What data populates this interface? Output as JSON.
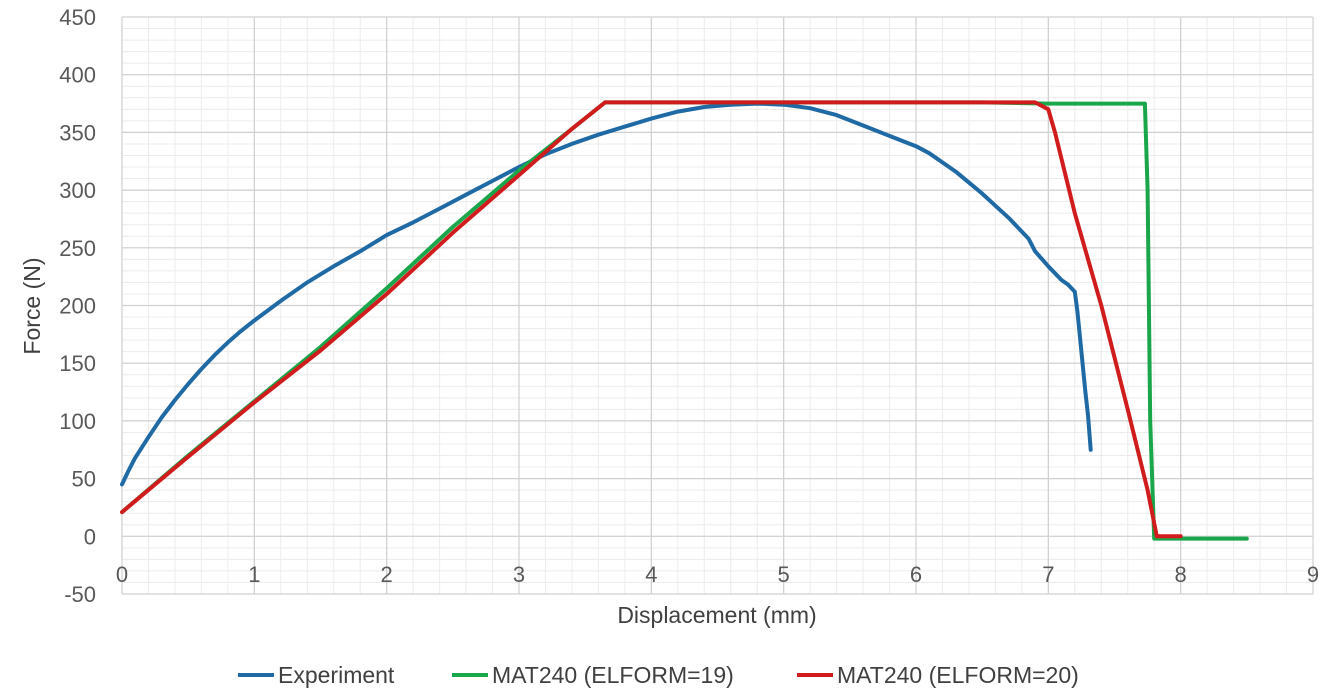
{
  "chart_data": {
    "type": "line",
    "title": "",
    "xlabel": "Displacement  (mm)",
    "ylabel": "Force (N)",
    "xlim": [
      0,
      9
    ],
    "ylim": [
      -50,
      450
    ],
    "x_ticks": [
      "0",
      "1",
      "2",
      "3",
      "4",
      "5",
      "6",
      "7",
      "8",
      "9"
    ],
    "y_ticks": [
      "-50",
      "0",
      "50",
      "100",
      "150",
      "200",
      "250",
      "300",
      "350",
      "400",
      "450"
    ],
    "grid": true,
    "minor_grid": true,
    "legend_position": "bottom",
    "series": [
      {
        "name": "Experiment",
        "color": "#1f6aa5",
        "points": [
          [
            0,
            45
          ],
          [
            0.05,
            57
          ],
          [
            0.1,
            68
          ],
          [
            0.2,
            86
          ],
          [
            0.3,
            103
          ],
          [
            0.4,
            118
          ],
          [
            0.5,
            132
          ],
          [
            0.6,
            145
          ],
          [
            0.7,
            157
          ],
          [
            0.8,
            168
          ],
          [
            0.9,
            178
          ],
          [
            1.0,
            187
          ],
          [
            1.2,
            204
          ],
          [
            1.4,
            220
          ],
          [
            1.5,
            227
          ],
          [
            1.6,
            234
          ],
          [
            1.8,
            247
          ],
          [
            2.0,
            261
          ],
          [
            2.2,
            272
          ],
          [
            2.4,
            284
          ],
          [
            2.6,
            296
          ],
          [
            2.8,
            308
          ],
          [
            3.0,
            320
          ],
          [
            3.2,
            331
          ],
          [
            3.4,
            340
          ],
          [
            3.6,
            348
          ],
          [
            3.8,
            355
          ],
          [
            4.0,
            362
          ],
          [
            4.2,
            368
          ],
          [
            4.4,
            372
          ],
          [
            4.6,
            374
          ],
          [
            4.8,
            375
          ],
          [
            5.0,
            374
          ],
          [
            5.2,
            371
          ],
          [
            5.4,
            365
          ],
          [
            5.6,
            356
          ],
          [
            5.8,
            347
          ],
          [
            6.0,
            338
          ],
          [
            6.1,
            332
          ],
          [
            6.3,
            316
          ],
          [
            6.5,
            297
          ],
          [
            6.7,
            276
          ],
          [
            6.85,
            258
          ],
          [
            6.9,
            247
          ],
          [
            7.0,
            234
          ],
          [
            7.1,
            222
          ],
          [
            7.15,
            218
          ],
          [
            7.2,
            212
          ],
          [
            7.22,
            195
          ],
          [
            7.25,
            160
          ],
          [
            7.28,
            125
          ],
          [
            7.3,
            105
          ],
          [
            7.32,
            75
          ]
        ]
      },
      {
        "name": "MAT240 (ELFORM=19)",
        "color": "#1aa64a",
        "points": [
          [
            0,
            21
          ],
          [
            0.5,
            70
          ],
          [
            1.0,
            117
          ],
          [
            1.5,
            164
          ],
          [
            2.0,
            215
          ],
          [
            2.5,
            268
          ],
          [
            3.0,
            317
          ],
          [
            3.4,
            353
          ],
          [
            3.65,
            376
          ],
          [
            4.5,
            376
          ],
          [
            5.5,
            376
          ],
          [
            6.5,
            376
          ],
          [
            7.0,
            375
          ],
          [
            7.5,
            375
          ],
          [
            7.73,
            375
          ],
          [
            7.75,
            300
          ],
          [
            7.77,
            100
          ],
          [
            7.8,
            -2
          ],
          [
            8.0,
            -2
          ],
          [
            8.5,
            -2
          ]
        ]
      },
      {
        "name": "MAT240 (ELFORM=20)",
        "color": "#d01c1c",
        "points": [
          [
            0,
            21
          ],
          [
            0.5,
            69
          ],
          [
            1.0,
            116
          ],
          [
            1.5,
            161
          ],
          [
            2.0,
            210
          ],
          [
            2.5,
            263
          ],
          [
            3.0,
            313
          ],
          [
            3.4,
            353
          ],
          [
            3.65,
            376
          ],
          [
            4.5,
            376
          ],
          [
            5.5,
            376
          ],
          [
            6.2,
            376
          ],
          [
            6.9,
            376
          ],
          [
            7.0,
            370
          ],
          [
            7.05,
            350
          ],
          [
            7.2,
            280
          ],
          [
            7.4,
            200
          ],
          [
            7.6,
            110
          ],
          [
            7.75,
            40
          ],
          [
            7.82,
            0
          ],
          [
            8.0,
            0
          ]
        ]
      }
    ]
  }
}
